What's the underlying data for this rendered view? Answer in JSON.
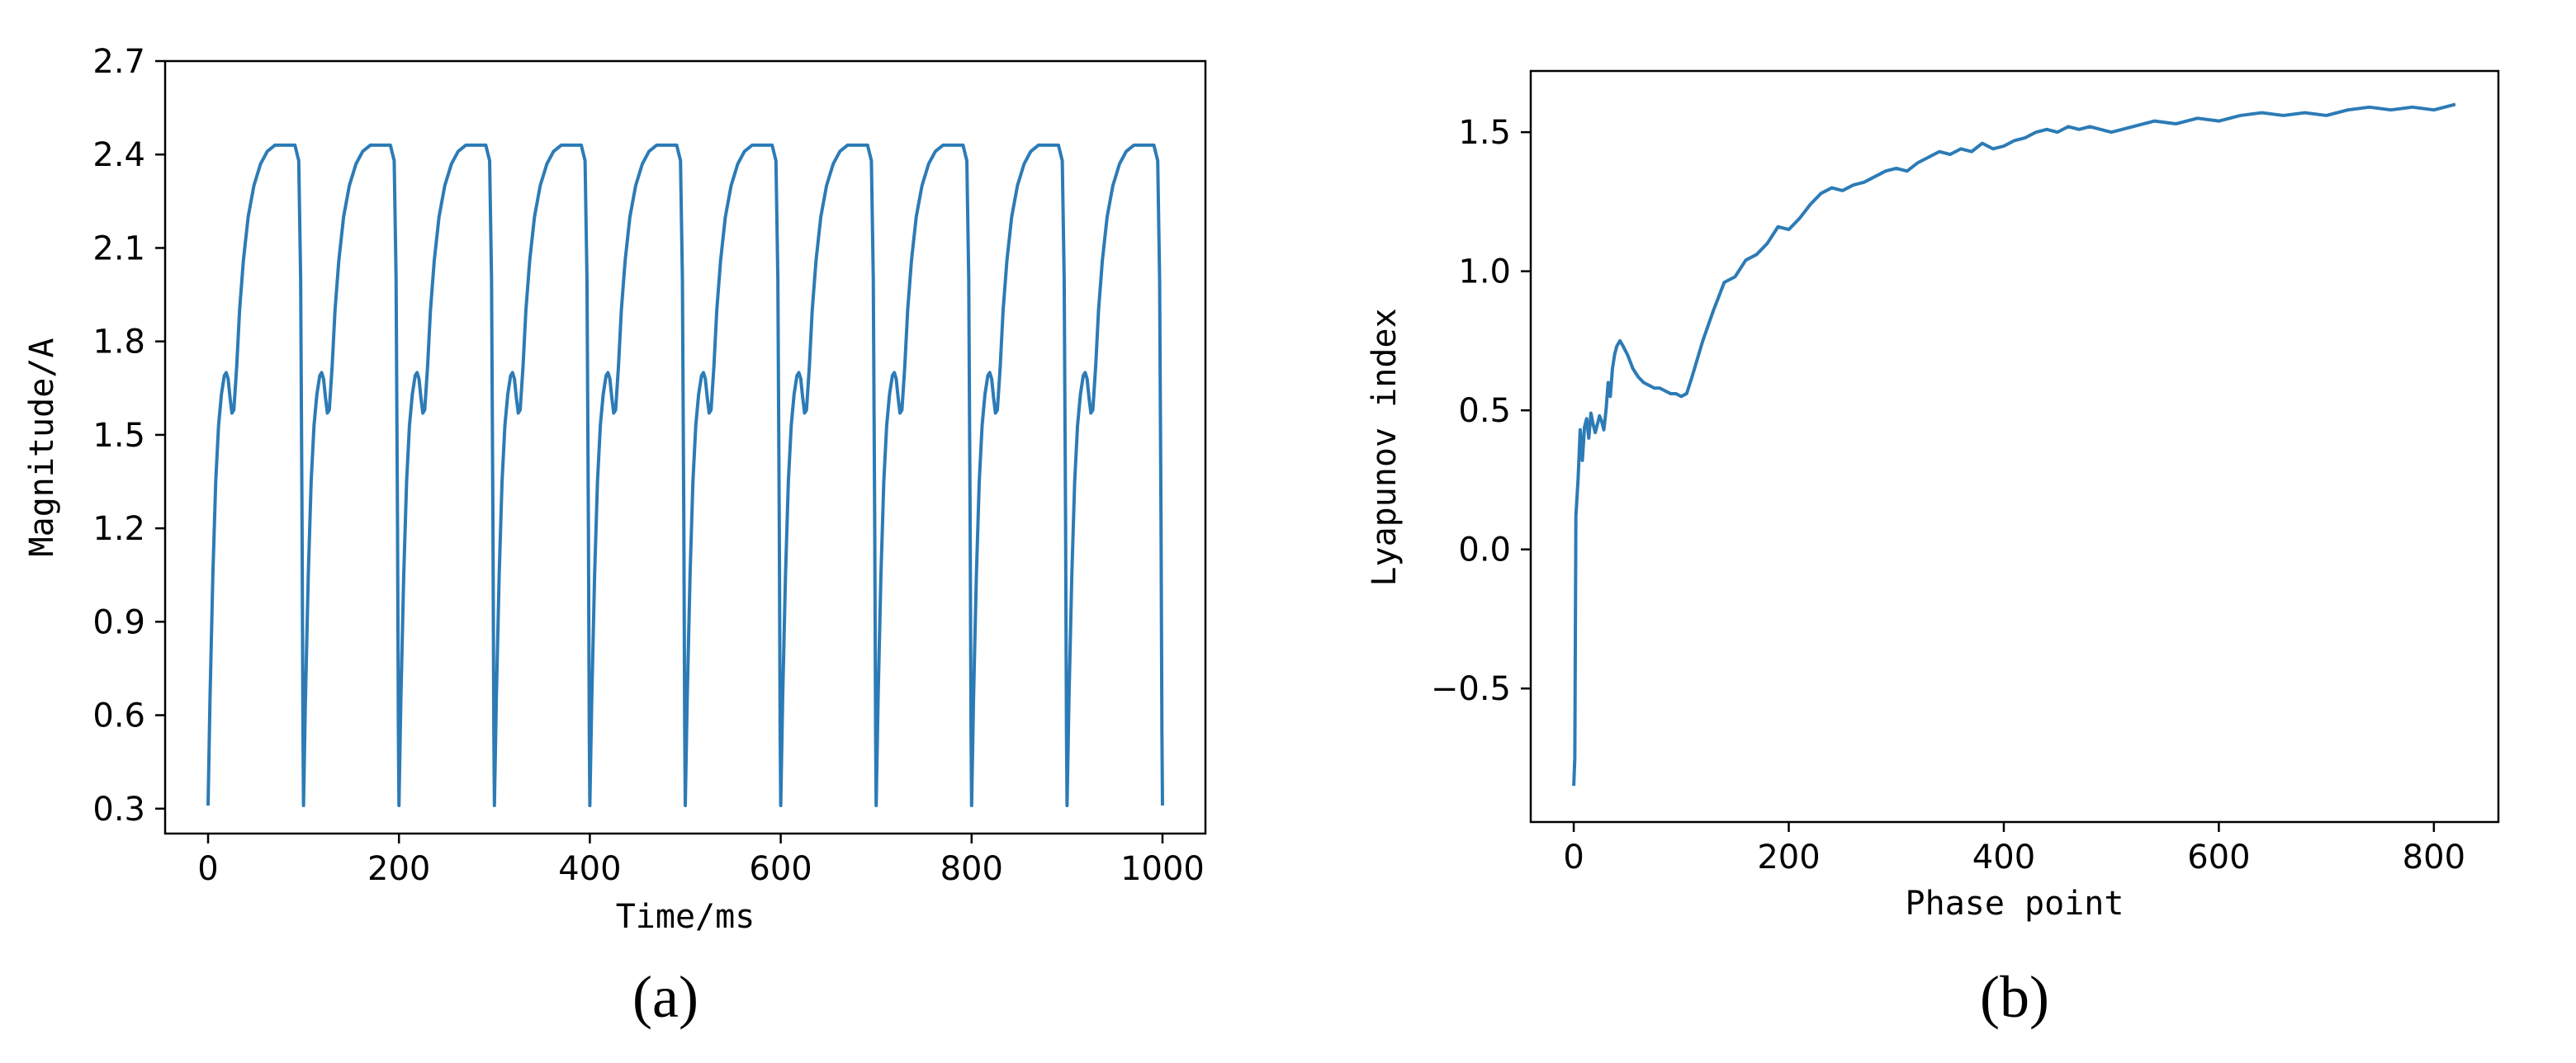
{
  "chart_data": [
    {
      "type": "line",
      "panel": "(a)",
      "xlabel": "Time/ms",
      "ylabel": "Magnitude/A",
      "xlim": [
        -45,
        1045
      ],
      "ylim": [
        0.22,
        2.7
      ],
      "xticks": [
        0,
        200,
        400,
        600,
        800,
        1000
      ],
      "yticks": [
        0.3,
        0.6,
        0.9,
        1.2,
        1.5,
        1.8,
        2.1,
        2.4,
        2.7
      ],
      "ytick_labels": [
        "0.3",
        "0.6",
        "0.9",
        "1.2",
        "1.5",
        "1.8",
        "2.1",
        "2.4",
        "2.7"
      ],
      "grid": false,
      "series_color": "#2c7bb6",
      "period_ms": 100,
      "cycle_profile": {
        "t": [
          0,
          2,
          5,
          8,
          11,
          14,
          17,
          19,
          21,
          23,
          25,
          27,
          30,
          33,
          37,
          42,
          48,
          55,
          62,
          70,
          85,
          91,
          95,
          97,
          98.5,
          99.4,
          100
        ],
        "y": [
          0.31,
          0.65,
          1.05,
          1.35,
          1.53,
          1.63,
          1.69,
          1.7,
          1.68,
          1.62,
          1.57,
          1.58,
          1.72,
          1.9,
          2.06,
          2.2,
          2.3,
          2.37,
          2.41,
          2.43,
          2.43,
          2.43,
          2.38,
          2.0,
          1.2,
          0.55,
          0.31
        ]
      },
      "cycles": 10
    },
    {
      "type": "line",
      "panel": "(b)",
      "xlabel": "Phase point",
      "ylabel": "Lyapunov index",
      "xlim": [
        -40,
        860
      ],
      "ylim": [
        -0.98,
        1.72
      ],
      "xticks": [
        0,
        200,
        400,
        600,
        800
      ],
      "yticks": [
        -0.5,
        0.0,
        0.5,
        1.0,
        1.5
      ],
      "ytick_labels": [
        "−0.5",
        "0.0",
        "0.5",
        "1.0",
        "1.5"
      ],
      "grid": false,
      "series_color": "#2c7bb6",
      "x": [
        0,
        1,
        2,
        4,
        6,
        8,
        10,
        12,
        14,
        16,
        18,
        20,
        22,
        24,
        26,
        28,
        30,
        32,
        34,
        36,
        38,
        40,
        43,
        46,
        50,
        55,
        60,
        65,
        70,
        75,
        80,
        85,
        90,
        95,
        100,
        105,
        110,
        120,
        130,
        140,
        150,
        160,
        170,
        180,
        190,
        200,
        210,
        220,
        230,
        240,
        250,
        260,
        270,
        280,
        290,
        300,
        310,
        320,
        330,
        340,
        350,
        360,
        370,
        380,
        390,
        400,
        410,
        420,
        430,
        440,
        450,
        460,
        470,
        480,
        490,
        500,
        520,
        540,
        560,
        580,
        600,
        620,
        640,
        660,
        680,
        700,
        720,
        740,
        760,
        780,
        800,
        820
      ],
      "y": [
        -0.85,
        -0.75,
        0.12,
        0.25,
        0.43,
        0.32,
        0.44,
        0.47,
        0.4,
        0.49,
        0.45,
        0.42,
        0.45,
        0.48,
        0.46,
        0.43,
        0.5,
        0.6,
        0.55,
        0.65,
        0.7,
        0.73,
        0.75,
        0.73,
        0.7,
        0.65,
        0.62,
        0.6,
        0.59,
        0.58,
        0.58,
        0.57,
        0.56,
        0.56,
        0.55,
        0.56,
        0.62,
        0.75,
        0.86,
        0.96,
        0.98,
        1.04,
        1.06,
        1.1,
        1.16,
        1.15,
        1.19,
        1.24,
        1.28,
        1.3,
        1.29,
        1.31,
        1.32,
        1.34,
        1.36,
        1.37,
        1.36,
        1.39,
        1.41,
        1.43,
        1.42,
        1.44,
        1.43,
        1.46,
        1.44,
        1.45,
        1.47,
        1.48,
        1.5,
        1.51,
        1.5,
        1.52,
        1.51,
        1.52,
        1.51,
        1.5,
        1.52,
        1.54,
        1.53,
        1.55,
        1.54,
        1.56,
        1.57,
        1.56,
        1.57,
        1.56,
        1.58,
        1.59,
        1.58,
        1.59,
        1.58,
        1.6
      ]
    }
  ]
}
